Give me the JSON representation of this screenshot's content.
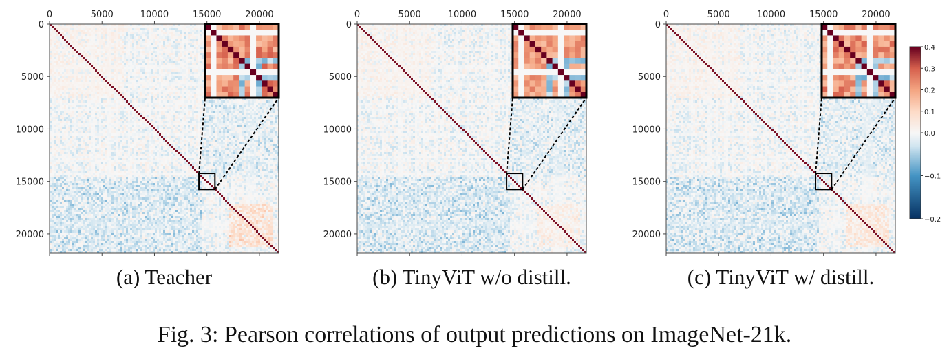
{
  "panels": [
    {
      "id": "teacher",
      "caption": "(a) Teacher",
      "variant": "teacher"
    },
    {
      "id": "tinyvit-wo-distill",
      "caption": "(b) TinyViT w/o distill.",
      "variant": "nodistill"
    },
    {
      "id": "tinyvit-w-distill",
      "caption": "(c) TinyViT w/ distill.",
      "variant": "distill"
    }
  ],
  "figure_caption": "Fig. 3: Pearson correlations of output predictions on ImageNet-21k.",
  "chart_data": {
    "type": "heatmap",
    "title": "Pearson correlations of output predictions on ImageNet-21k",
    "x_ticks": [
      "0",
      "5000",
      "10000",
      "15000",
      "20000"
    ],
    "y_ticks": [
      "0",
      "5000",
      "10000",
      "15000",
      "20000"
    ],
    "x_tick_values": [
      0,
      5000,
      10000,
      15000,
      20000
    ],
    "y_tick_values": [
      0,
      5000,
      10000,
      15000,
      20000
    ],
    "axis_range": [
      0,
      21841
    ],
    "zoom_region": [
      14500,
      15500
    ],
    "colorbar": {
      "ticks": [
        "0.4",
        "0.3",
        "0.2",
        "0.1",
        "0.0",
        "−0.1",
        "−0.2"
      ],
      "tick_values": [
        0.4,
        0.3,
        0.2,
        0.1,
        0.0,
        -0.1,
        -0.2
      ],
      "vmin": -0.2,
      "vcenter": 0.0,
      "vmax": 0.4,
      "colormap": "RdBu_r"
    },
    "colors": {
      "neg": "#053061",
      "zero": "#f7f7f7",
      "pos": "#67001f"
    }
  }
}
